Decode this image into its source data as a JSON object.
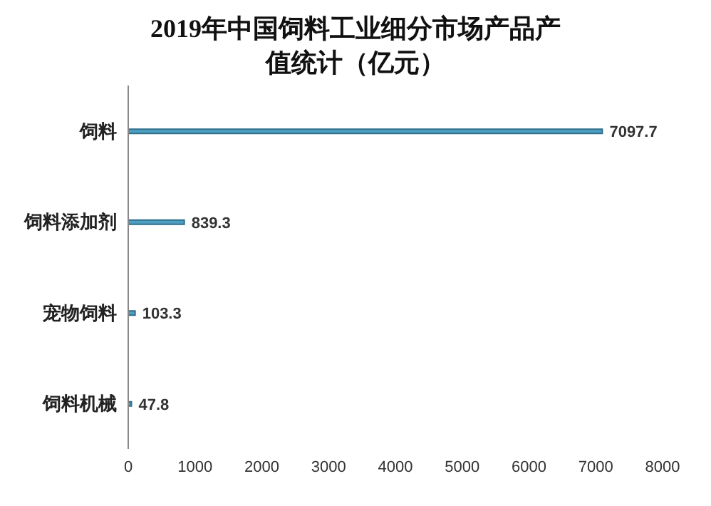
{
  "chart_data": {
    "type": "bar",
    "orientation": "horizontal",
    "title": "2019年中国饲料工业细分市场产品产值统计（亿元）",
    "categories": [
      "饲料",
      "饲料添加剂",
      "宠物饲料",
      "饲料机械"
    ],
    "values": [
      7097.7,
      839.3,
      103.3,
      47.8
    ],
    "color": "#4f9fc2",
    "xlim": [
      0,
      8000
    ],
    "xticks": [
      0,
      1000,
      2000,
      3000,
      4000,
      5000,
      6000,
      7000,
      8000
    ],
    "data_labels": true,
    "grid": false,
    "legend": false
  }
}
